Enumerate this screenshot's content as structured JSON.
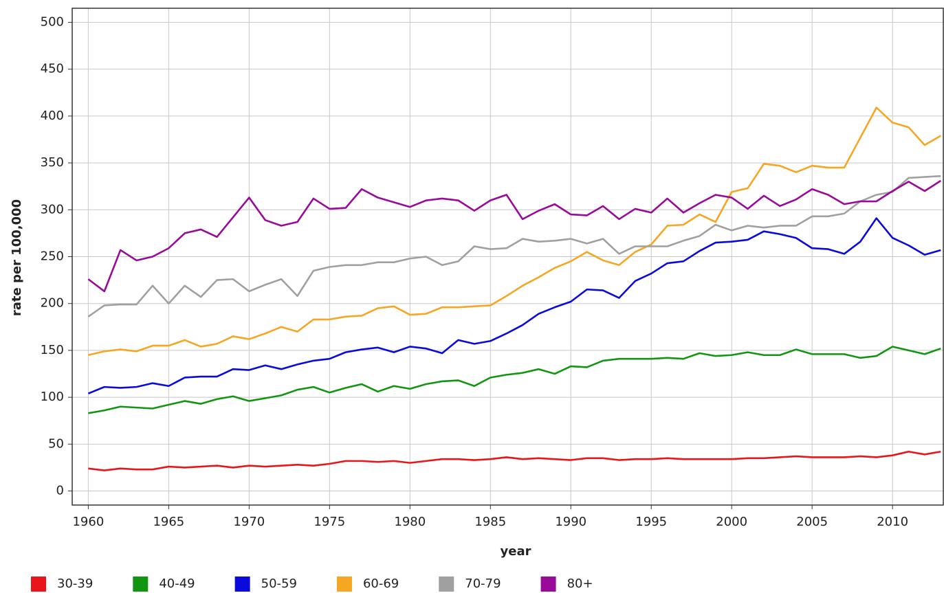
{
  "chart_data": {
    "type": "line",
    "x_label": "year",
    "y_label": "rate per 100,000",
    "x": [
      1960,
      1961,
      1962,
      1963,
      1964,
      1965,
      1966,
      1967,
      1968,
      1969,
      1970,
      1971,
      1972,
      1973,
      1974,
      1975,
      1976,
      1977,
      1978,
      1979,
      1980,
      1981,
      1982,
      1983,
      1984,
      1985,
      1986,
      1987,
      1988,
      1989,
      1990,
      1991,
      1992,
      1993,
      1994,
      1995,
      1996,
      1997,
      1998,
      1999,
      2000,
      2001,
      2002,
      2003,
      2004,
      2005,
      2006,
      2007,
      2008,
      2009,
      2010,
      2011,
      2012,
      2013
    ],
    "xlim": [
      1959,
      2013.2
    ],
    "xticks": [
      1960,
      1965,
      1970,
      1975,
      1980,
      1985,
      1990,
      1995,
      2000,
      2005,
      2010
    ],
    "ylim": [
      -15,
      515
    ],
    "yticks": [
      0,
      50,
      100,
      150,
      200,
      250,
      300,
      350,
      400,
      450,
      500
    ],
    "grid": true,
    "legend": "bottom",
    "series": [
      {
        "name": "30-39",
        "color": "#e8161b",
        "values": [
          24,
          22,
          24,
          23,
          23,
          26,
          25,
          26,
          27,
          25,
          27,
          26,
          27,
          28,
          27,
          29,
          32,
          32,
          31,
          32,
          30,
          32,
          34,
          34,
          33,
          34,
          36,
          34,
          35,
          34,
          33,
          35,
          35,
          33,
          34,
          34,
          35,
          34,
          34,
          34,
          34,
          35,
          35,
          36,
          37,
          36,
          36,
          36,
          37,
          36,
          38,
          42,
          39,
          42
        ]
      },
      {
        "name": "40-49",
        "color": "#129612",
        "values": [
          83,
          86,
          90,
          89,
          88,
          92,
          96,
          93,
          98,
          101,
          96,
          99,
          102,
          108,
          111,
          105,
          110,
          114,
          106,
          112,
          109,
          114,
          117,
          118,
          112,
          121,
          124,
          126,
          130,
          125,
          133,
          132,
          139,
          141,
          141,
          141,
          142,
          141,
          147,
          144,
          145,
          148,
          145,
          145,
          151,
          146,
          146,
          146,
          142,
          144,
          154,
          150,
          146,
          152
        ]
      },
      {
        "name": "50-59",
        "color": "#0a0adc",
        "values": [
          104,
          111,
          110,
          111,
          115,
          112,
          121,
          122,
          122,
          130,
          129,
          134,
          130,
          135,
          139,
          141,
          148,
          151,
          153,
          148,
          154,
          152,
          147,
          161,
          157,
          160,
          168,
          177,
          189,
          196,
          202,
          215,
          214,
          206,
          224,
          232,
          243,
          245,
          256,
          265,
          266,
          268,
          277,
          274,
          270,
          259,
          258,
          253,
          266,
          291,
          270,
          262,
          252,
          257
        ]
      },
      {
        "name": "60-69",
        "color": "#f5a623",
        "values": [
          145,
          149,
          151,
          149,
          155,
          155,
          161,
          154,
          157,
          165,
          162,
          168,
          175,
          170,
          183,
          183,
          186,
          187,
          195,
          197,
          188,
          189,
          196,
          196,
          197,
          198,
          208,
          219,
          228,
          238,
          245,
          255,
          246,
          241,
          255,
          263,
          283,
          284,
          295,
          287,
          319,
          323,
          349,
          347,
          340,
          347,
          345,
          345,
          377,
          409,
          393,
          388,
          369,
          379
        ]
      },
      {
        "name": "70-79",
        "color": "#a0a0a0",
        "values": [
          186,
          198,
          199,
          199,
          219,
          200,
          219,
          207,
          225,
          226,
          213,
          220,
          226,
          208,
          235,
          239,
          241,
          241,
          244,
          244,
          248,
          250,
          241,
          245,
          261,
          258,
          259,
          269,
          266,
          267,
          269,
          264,
          269,
          253,
          261,
          261,
          261,
          267,
          272,
          284,
          278,
          283,
          281,
          283,
          283,
          293,
          293,
          296,
          309,
          316,
          319,
          334,
          335,
          336
        ]
      },
      {
        "name": "80+",
        "color": "#990a99",
        "values": [
          226,
          213,
          257,
          246,
          250,
          259,
          275,
          279,
          271,
          292,
          313,
          289,
          283,
          287,
          312,
          301,
          302,
          322,
          313,
          308,
          303,
          310,
          312,
          310,
          299,
          310,
          316,
          290,
          299,
          306,
          295,
          294,
          304,
          290,
          301,
          297,
          312,
          297,
          307,
          316,
          313,
          301,
          315,
          304,
          311,
          322,
          316,
          306,
          309,
          309,
          320,
          330,
          320,
          331
        ]
      }
    ]
  }
}
